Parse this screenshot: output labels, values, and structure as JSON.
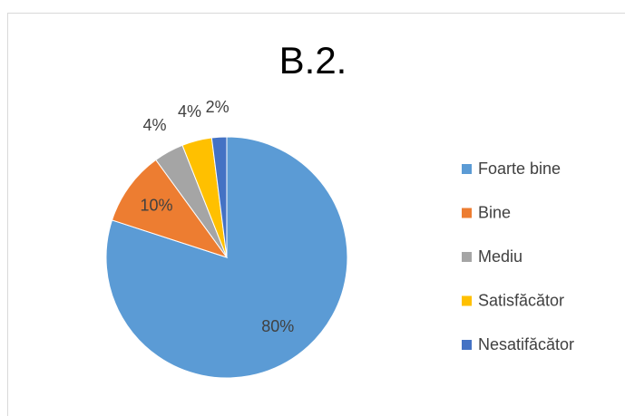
{
  "chart_data": {
    "type": "pie",
    "title": "B.2.",
    "categories": [
      "Foarte bine",
      "Bine",
      "Mediu",
      "Satisfăcător",
      "Nesatifăcător"
    ],
    "values": [
      80,
      10,
      4,
      4,
      2
    ],
    "value_labels": [
      "80%",
      "10%",
      "4%",
      "4%",
      "2%"
    ],
    "colors": [
      "#5b9bd5",
      "#ed7d31",
      "#a5a5a5",
      "#ffc000",
      "#4472c4"
    ],
    "legend": "right"
  }
}
